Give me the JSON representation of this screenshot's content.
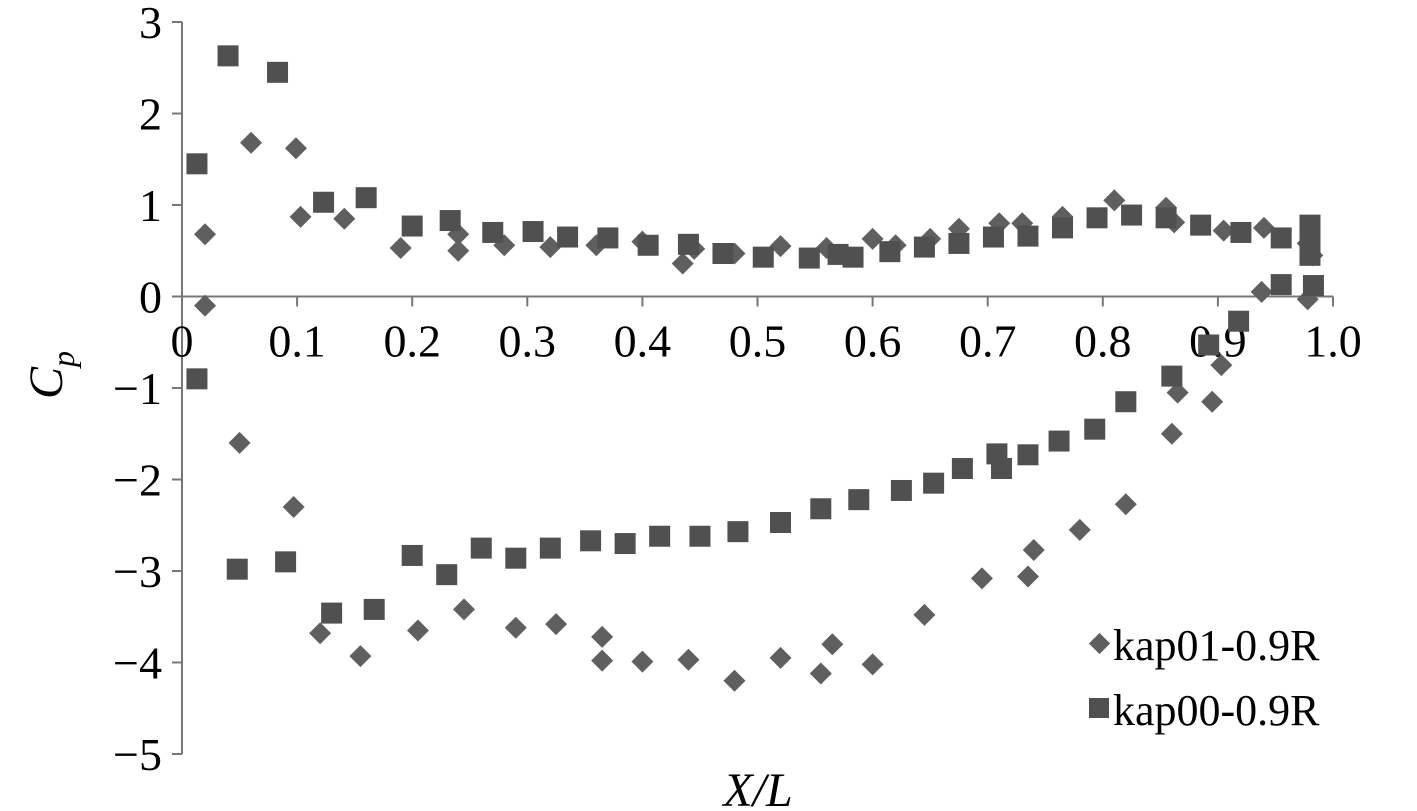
{
  "chart_data": {
    "type": "scatter",
    "title": "",
    "xlabel": "X/L",
    "ylabel": "C",
    "ylabel_subscript": "p",
    "xlim": [
      0,
      1.0
    ],
    "ylim": [
      -5,
      3
    ],
    "grid": false,
    "legend_position": "bottom-right",
    "x_ticks": [
      {
        "value": 0,
        "label": "0"
      },
      {
        "value": 0.1,
        "label": "0.1"
      },
      {
        "value": 0.2,
        "label": "0.2"
      },
      {
        "value": 0.3,
        "label": "0.3"
      },
      {
        "value": 0.4,
        "label": "0.4"
      },
      {
        "value": 0.5,
        "label": "0.5"
      },
      {
        "value": 0.6,
        "label": "0.6"
      },
      {
        "value": 0.7,
        "label": "0.7"
      },
      {
        "value": 0.8,
        "label": "0.8"
      },
      {
        "value": 0.9,
        "label": "0.9"
      },
      {
        "value": 1.0,
        "label": "1.0"
      }
    ],
    "y_ticks": [
      {
        "value": 3,
        "label": "3"
      },
      {
        "value": 2,
        "label": "2"
      },
      {
        "value": 1,
        "label": "1"
      },
      {
        "value": 0,
        "label": "0"
      },
      {
        "value": -1,
        "label": "−1"
      },
      {
        "value": -2,
        "label": "−2"
      },
      {
        "value": -3,
        "label": "−3"
      },
      {
        "value": -4,
        "label": "−4"
      },
      {
        "value": -5,
        "label": "−5"
      }
    ],
    "series": [
      {
        "name": "kap01-0.9R",
        "marker": "diamond",
        "color": "#5f5f5f",
        "points": [
          [
            0.02,
            0.68
          ],
          [
            0.06,
            1.68
          ],
          [
            0.099,
            1.62
          ],
          [
            0.103,
            0.87
          ],
          [
            0.141,
            0.85
          ],
          [
            0.19,
            0.53
          ],
          [
            0.24,
            0.68
          ],
          [
            0.24,
            0.5
          ],
          [
            0.28,
            0.56
          ],
          [
            0.32,
            0.54
          ],
          [
            0.36,
            0.56
          ],
          [
            0.4,
            0.6
          ],
          [
            0.435,
            0.36
          ],
          [
            0.445,
            0.52
          ],
          [
            0.48,
            0.47
          ],
          [
            0.52,
            0.55
          ],
          [
            0.56,
            0.53
          ],
          [
            0.6,
            0.63
          ],
          [
            0.62,
            0.56
          ],
          [
            0.65,
            0.63
          ],
          [
            0.675,
            0.74
          ],
          [
            0.71,
            0.8
          ],
          [
            0.73,
            0.8
          ],
          [
            0.765,
            0.87
          ],
          [
            0.81,
            1.05
          ],
          [
            0.855,
            0.97
          ],
          [
            0.862,
            0.81
          ],
          [
            0.905,
            0.72
          ],
          [
            0.94,
            0.75
          ],
          [
            0.978,
            0.58
          ],
          [
            0.02,
            -0.1
          ],
          [
            0.05,
            -1.6
          ],
          [
            0.097,
            -2.3
          ],
          [
            0.12,
            -3.68
          ],
          [
            0.155,
            -3.93
          ],
          [
            0.205,
            -3.65
          ],
          [
            0.245,
            -3.42
          ],
          [
            0.29,
            -3.62
          ],
          [
            0.325,
            -3.58
          ],
          [
            0.365,
            -3.72
          ],
          [
            0.365,
            -3.98
          ],
          [
            0.4,
            -3.99
          ],
          [
            0.44,
            -3.97
          ],
          [
            0.48,
            -4.2
          ],
          [
            0.52,
            -3.95
          ],
          [
            0.555,
            -4.12
          ],
          [
            0.565,
            -3.8
          ],
          [
            0.6,
            -4.02
          ],
          [
            0.645,
            -3.48
          ],
          [
            0.695,
            -3.08
          ],
          [
            0.735,
            -3.06
          ],
          [
            0.74,
            -2.77
          ],
          [
            0.78,
            -2.55
          ],
          [
            0.82,
            -2.27
          ],
          [
            0.86,
            -1.5
          ],
          [
            0.865,
            -1.05
          ],
          [
            0.895,
            -1.15
          ],
          [
            0.903,
            -0.75
          ],
          [
            0.938,
            0.05
          ],
          [
            0.978,
            -0.03
          ],
          [
            0.982,
            0.45
          ]
        ]
      },
      {
        "name": "kap00-0.9R",
        "marker": "square",
        "color": "#505050",
        "points": [
          [
            0.013,
            1.45
          ],
          [
            0.04,
            2.63
          ],
          [
            0.083,
            2.45
          ],
          [
            0.123,
            1.03
          ],
          [
            0.16,
            1.08
          ],
          [
            0.2,
            0.77
          ],
          [
            0.233,
            0.83
          ],
          [
            0.27,
            0.7
          ],
          [
            0.305,
            0.71
          ],
          [
            0.335,
            0.65
          ],
          [
            0.37,
            0.64
          ],
          [
            0.405,
            0.56
          ],
          [
            0.44,
            0.57
          ],
          [
            0.47,
            0.47
          ],
          [
            0.505,
            0.43
          ],
          [
            0.545,
            0.42
          ],
          [
            0.57,
            0.46
          ],
          [
            0.583,
            0.43
          ],
          [
            0.615,
            0.49
          ],
          [
            0.645,
            0.54
          ],
          [
            0.675,
            0.58
          ],
          [
            0.705,
            0.65
          ],
          [
            0.735,
            0.66
          ],
          [
            0.765,
            0.75
          ],
          [
            0.795,
            0.86
          ],
          [
            0.825,
            0.89
          ],
          [
            0.855,
            0.86
          ],
          [
            0.885,
            0.78
          ],
          [
            0.92,
            0.7
          ],
          [
            0.955,
            0.64
          ],
          [
            0.98,
            0.78
          ],
          [
            0.98,
            0.6
          ],
          [
            0.98,
            0.45
          ],
          [
            0.983,
            0.12
          ],
          [
            0.955,
            0.13
          ],
          [
            0.918,
            -0.27
          ],
          [
            0.892,
            -0.53
          ],
          [
            0.86,
            -0.87
          ],
          [
            0.82,
            -1.15
          ],
          [
            0.793,
            -1.45
          ],
          [
            0.762,
            -1.58
          ],
          [
            0.735,
            -1.73
          ],
          [
            0.708,
            -1.72
          ],
          [
            0.712,
            -1.88
          ],
          [
            0.678,
            -1.88
          ],
          [
            0.653,
            -2.04
          ],
          [
            0.625,
            -2.12
          ],
          [
            0.588,
            -2.22
          ],
          [
            0.555,
            -2.32
          ],
          [
            0.52,
            -2.47
          ],
          [
            0.483,
            -2.57
          ],
          [
            0.45,
            -2.62
          ],
          [
            0.415,
            -2.62
          ],
          [
            0.385,
            -2.7
          ],
          [
            0.355,
            -2.67
          ],
          [
            0.32,
            -2.75
          ],
          [
            0.29,
            -2.86
          ],
          [
            0.26,
            -2.75
          ],
          [
            0.23,
            -3.04
          ],
          [
            0.2,
            -2.83
          ],
          [
            0.167,
            -3.42
          ],
          [
            0.13,
            -3.46
          ],
          [
            0.09,
            -2.9
          ],
          [
            0.048,
            -2.98
          ],
          [
            0.013,
            -0.9
          ]
        ]
      }
    ]
  }
}
